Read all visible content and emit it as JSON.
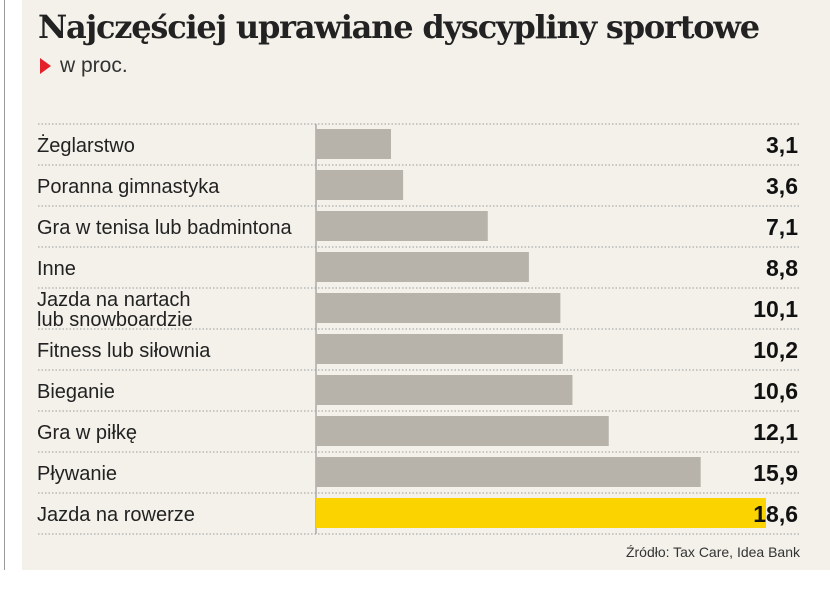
{
  "title": "Najczęściej uprawiane dyscypliny sportowe",
  "subtitle": "w proc.",
  "source": "Źródło: Tax Care, Idea Bank",
  "colors": {
    "bar": "#b7b3aa",
    "highlight": "#fbd400",
    "marker": "#e4202a",
    "background": "#f3f1ea"
  },
  "chart_data": {
    "type": "bar",
    "orientation": "horizontal",
    "unit": "%",
    "categories": [
      [
        "Żeglarstwo"
      ],
      [
        "Poranna gimnastyka"
      ],
      [
        "Gra w tenisa lub badmintona"
      ],
      [
        "Inne"
      ],
      [
        "Jazda na nartach",
        "lub snowboardzie"
      ],
      [
        "Fitness lub siłownia"
      ],
      [
        "Bieganie"
      ],
      [
        "Gra w piłkę"
      ],
      [
        "Pływanie"
      ],
      [
        "Jazda na rowerze"
      ]
    ],
    "values": [
      3.1,
      3.6,
      7.1,
      8.8,
      10.1,
      10.2,
      10.6,
      12.1,
      15.9,
      18.6
    ],
    "value_labels": [
      "3,1",
      "3,6",
      "7,1",
      "8,8",
      "10,1",
      "10,2",
      "10,6",
      "12,1",
      "15,9",
      "18,6"
    ],
    "highlight_index": 9,
    "xlim": [
      0,
      18.6
    ],
    "grid": true
  }
}
